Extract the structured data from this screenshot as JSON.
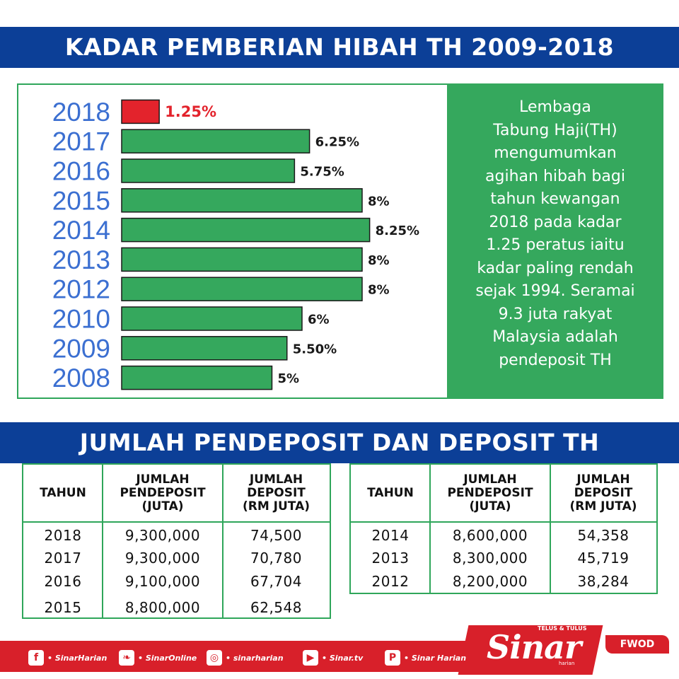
{
  "title_top": "KADAR PEMBERIAN HIBAH TH 2009-2018",
  "title_bottom": "JUMLAH PENDEPOSIT DAN DEPOSIT TH",
  "info_text": "Lembaga\nTabung Haji(TH)\nmengumumkan\nagihan hibah bagi\ntahun kewangan\n2018 pada kadar\n1.25 peratus iaitu\nkadar paling rendah\nsejak 1994. Seramai\n9.3 juta rakyat\nMalaysia adalah\npendeposit TH",
  "colors": {
    "banner": "#0c3f97",
    "bar": "#35a85d",
    "highlight": "#e3232c",
    "year_label": "#3b6fd1",
    "info_bg": "#35a85d"
  },
  "chart_data": {
    "type": "bar",
    "orientation": "horizontal",
    "title": "KADAR PEMBERIAN HIBAH TH 2009-2018",
    "categories": [
      "2018",
      "2017",
      "2016",
      "2015",
      "2014",
      "2013",
      "2012",
      "2010",
      "2009",
      "2008"
    ],
    "values": [
      1.25,
      6.25,
      5.75,
      8,
      8.25,
      8,
      8,
      6,
      5.5,
      5
    ],
    "data_labels": [
      "1.25%",
      "6.25%",
      "5.75%",
      "8%",
      "8.25%",
      "8%",
      "8%",
      "6%",
      "5.50%",
      "5%"
    ],
    "highlight_category": "2018",
    "xlim": [
      0,
      8.25
    ],
    "grid": false
  },
  "table_headers": [
    "TAHUN",
    "JUMLAH\nPENDEPOSIT\n(JUTA)",
    "JUMLAH\nDEPOSIT\n(RM JUTA)"
  ],
  "table_left": [
    [
      "2018",
      "9,300,000",
      "74,500"
    ],
    [
      "2017",
      "9,300,000",
      "70,780"
    ],
    [
      "2016",
      "9,100,000",
      "67,704"
    ],
    [
      "2015",
      "8,800,000",
      "62,548"
    ]
  ],
  "table_right": [
    [
      "2014",
      "8,600,000",
      "54,358"
    ],
    [
      "2013",
      "8,300,000",
      "45,719"
    ],
    [
      "2012",
      "8,200,000",
      "38,284"
    ]
  ],
  "footer": {
    "social": [
      {
        "icon": "facebook-icon",
        "label": "• SinarHarian"
      },
      {
        "icon": "twitter-icon",
        "label": "• SinarOnline"
      },
      {
        "icon": "instagram-icon",
        "label": "• sinarharian"
      },
      {
        "icon": "youtube-icon",
        "label": "• Sinar.tv"
      },
      {
        "icon": "pinterest-icon",
        "label": "• Sinar Harian"
      }
    ],
    "logo": "Sinar",
    "logo_tagline": "TELUS & TULUS",
    "logo_sub": "harian",
    "badge": "FWOD"
  }
}
